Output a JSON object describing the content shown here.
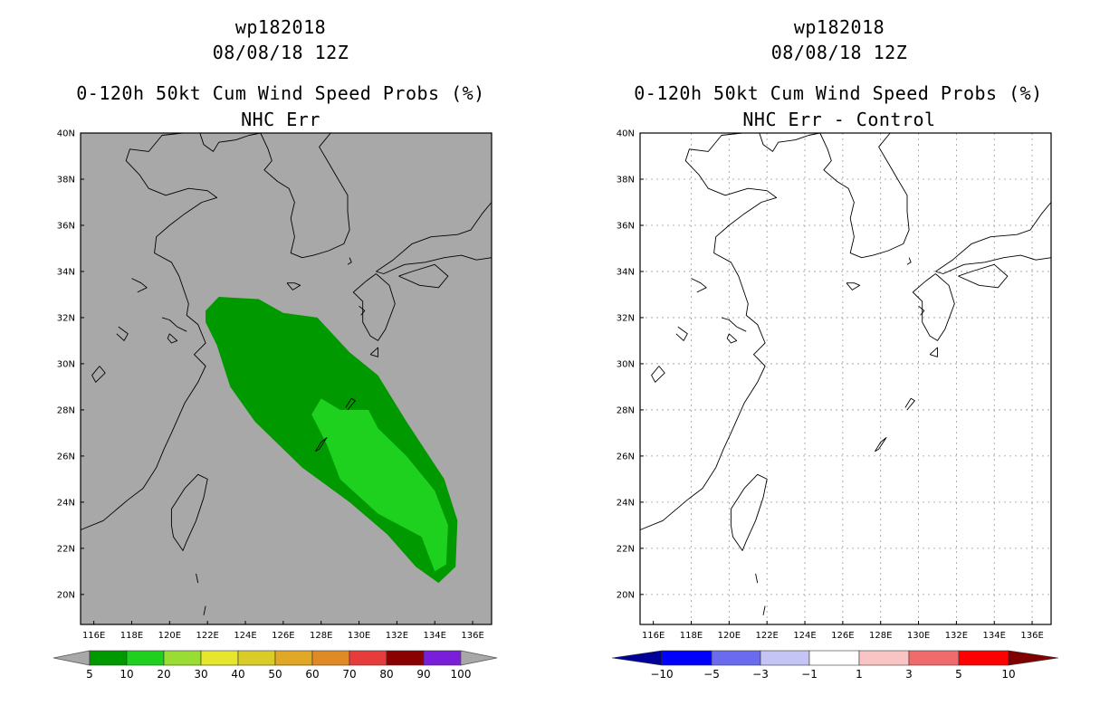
{
  "chart_data": [
    {
      "type": "map",
      "title": "wp182018",
      "subtitle": "08/08/18 12Z",
      "product": "0-120h 50kt Cum Wind Speed Probs (%)",
      "panel": "NHC Err",
      "lon_range": [
        115.3,
        137.0
      ],
      "lat_range": [
        18.7,
        40.0
      ],
      "x_ticks": [
        "116E",
        "118E",
        "120E",
        "122E",
        "124E",
        "126E",
        "128E",
        "130E",
        "132E",
        "134E",
        "136E"
      ],
      "y_ticks": [
        "20N",
        "22N",
        "24N",
        "26N",
        "28N",
        "30N",
        "32N",
        "34N",
        "36N",
        "38N",
        "40N"
      ],
      "background": "#a8a8a8",
      "colorbar": {
        "labels": [
          "5",
          "10",
          "20",
          "30",
          "40",
          "50",
          "60",
          "70",
          "80",
          "90",
          "100"
        ],
        "colors": [
          "#009900",
          "#1fd11f",
          "#99dd33",
          "#e6e62e",
          "#d9cc29",
          "#e0a824",
          "#e08a26",
          "#e63c3c",
          "#8b0000",
          "#7a1fd9"
        ]
      },
      "shaded_areas": [
        {
          "level": "5-10",
          "color": "#009900",
          "polygon": [
            [
              121.9,
              32.3
            ],
            [
              122.6,
              32.9
            ],
            [
              124.7,
              32.8
            ],
            [
              126.0,
              32.2
            ],
            [
              127.8,
              32.0
            ],
            [
              129.5,
              30.5
            ],
            [
              131.0,
              29.5
            ],
            [
              132.5,
              27.5
            ],
            [
              134.5,
              25.0
            ],
            [
              135.2,
              23.2
            ],
            [
              135.1,
              21.2
            ],
            [
              134.2,
              20.5
            ],
            [
              133.0,
              21.2
            ],
            [
              131.5,
              22.6
            ],
            [
              129.5,
              24.0
            ],
            [
              127.0,
              25.5
            ],
            [
              124.5,
              27.5
            ],
            [
              123.2,
              29.0
            ],
            [
              122.5,
              30.8
            ],
            [
              121.9,
              31.8
            ]
          ]
        },
        {
          "level": "10-20",
          "color": "#1fd11f",
          "polygon": [
            [
              128.0,
              28.5
            ],
            [
              129.0,
              28.0
            ],
            [
              130.5,
              28.0
            ],
            [
              131.0,
              27.2
            ],
            [
              132.5,
              26.0
            ],
            [
              134.0,
              24.5
            ],
            [
              134.7,
              23.0
            ],
            [
              134.6,
              21.3
            ],
            [
              134.0,
              21.0
            ],
            [
              133.3,
              22.5
            ],
            [
              131.0,
              23.5
            ],
            [
              129.0,
              25.0
            ],
            [
              128.3,
              26.5
            ],
            [
              127.5,
              27.8
            ]
          ]
        }
      ]
    },
    {
      "type": "map",
      "title": "wp182018",
      "subtitle": "08/08/18 12Z",
      "product": "0-120h 50kt Cum Wind Speed Probs (%)",
      "panel": "NHC Err - Control",
      "lon_range": [
        115.3,
        137.0
      ],
      "lat_range": [
        18.7,
        40.0
      ],
      "x_ticks": [
        "116E",
        "118E",
        "120E",
        "122E",
        "124E",
        "126E",
        "128E",
        "130E",
        "132E",
        "134E",
        "136E"
      ],
      "y_ticks": [
        "20N",
        "22N",
        "24N",
        "26N",
        "28N",
        "30N",
        "32N",
        "34N",
        "36N",
        "38N",
        "40N"
      ],
      "background": "#ffffff",
      "gridlines": true,
      "colorbar": {
        "labels": [
          "−10",
          "−5",
          "−3",
          "−1",
          "1",
          "3",
          "5",
          "10"
        ],
        "colors": [
          "#0000cc",
          "#0000ff",
          "#6b6bf0",
          "#c4c4f5",
          "#ffffff",
          "#f8c4c4",
          "#f06b6b",
          "#ff0000",
          "#cc0000"
        ],
        "end_colors": [
          "#000099",
          "#800000"
        ]
      }
    }
  ],
  "coastlines": [
    [
      [
        115.3,
        22.8
      ],
      [
        116.5,
        23.2
      ],
      [
        117.8,
        24.1
      ],
      [
        118.6,
        24.6
      ],
      [
        119.3,
        25.5
      ],
      [
        119.7,
        26.3
      ],
      [
        120.1,
        27.0
      ],
      [
        120.8,
        28.3
      ],
      [
        121.5,
        29.2
      ],
      [
        121.9,
        29.9
      ],
      [
        121.3,
        30.4
      ],
      [
        121.9,
        30.9
      ],
      [
        121.5,
        31.7
      ],
      [
        120.9,
        32.1
      ],
      [
        121.0,
        32.6
      ],
      [
        120.5,
        33.8
      ],
      [
        120.1,
        34.4
      ],
      [
        119.2,
        34.8
      ],
      [
        119.3,
        35.5
      ],
      [
        120.0,
        36.0
      ],
      [
        120.8,
        36.5
      ],
      [
        121.7,
        37.0
      ],
      [
        122.5,
        37.2
      ],
      [
        122.0,
        37.5
      ],
      [
        121.0,
        37.6
      ],
      [
        119.8,
        37.3
      ],
      [
        118.9,
        37.6
      ],
      [
        118.4,
        38.2
      ],
      [
        117.7,
        38.8
      ],
      [
        117.9,
        39.3
      ],
      [
        118.9,
        39.2
      ],
      [
        119.6,
        39.9
      ],
      [
        120.7,
        40.0
      ]
    ],
    [
      [
        121.6,
        40.0
      ],
      [
        121.8,
        39.5
      ],
      [
        122.3,
        39.2
      ],
      [
        122.6,
        39.6
      ],
      [
        123.5,
        39.7
      ],
      [
        124.2,
        39.9
      ],
      [
        124.8,
        40.0
      ]
    ],
    [
      [
        124.8,
        40.0
      ],
      [
        125.2,
        39.3
      ],
      [
        125.4,
        38.8
      ],
      [
        125.0,
        38.4
      ],
      [
        125.7,
        37.9
      ],
      [
        126.3,
        37.6
      ],
      [
        126.6,
        37.0
      ],
      [
        126.4,
        36.3
      ],
      [
        126.6,
        35.5
      ],
      [
        126.4,
        34.8
      ],
      [
        127.0,
        34.6
      ],
      [
        127.6,
        34.7
      ],
      [
        128.4,
        34.9
      ],
      [
        129.2,
        35.2
      ],
      [
        129.5,
        35.8
      ],
      [
        129.4,
        36.6
      ],
      [
        129.4,
        37.3
      ],
      [
        128.9,
        38.0
      ],
      [
        128.4,
        38.7
      ],
      [
        127.9,
        39.4
      ],
      [
        128.5,
        40.0
      ]
    ],
    [
      [
        130.9,
        34.0
      ],
      [
        131.8,
        34.5
      ],
      [
        132.8,
        35.2
      ],
      [
        133.8,
        35.5
      ],
      [
        135.2,
        35.6
      ],
      [
        135.9,
        35.8
      ],
      [
        136.5,
        36.5
      ],
      [
        137.0,
        37.0
      ]
    ],
    [
      [
        137.0,
        34.6
      ],
      [
        136.2,
        34.5
      ],
      [
        135.4,
        34.7
      ],
      [
        134.5,
        34.6
      ],
      [
        133.5,
        34.4
      ],
      [
        132.4,
        34.3
      ],
      [
        131.3,
        33.9
      ],
      [
        130.9,
        34.0
      ]
    ],
    [
      [
        130.9,
        33.9
      ],
      [
        131.6,
        33.4
      ],
      [
        131.9,
        32.6
      ],
      [
        131.4,
        31.5
      ],
      [
        131.0,
        31.0
      ],
      [
        130.6,
        31.2
      ],
      [
        130.2,
        31.8
      ],
      [
        130.2,
        32.7
      ],
      [
        129.7,
        33.1
      ],
      [
        130.4,
        33.6
      ],
      [
        130.9,
        33.9
      ]
    ],
    [
      [
        132.1,
        33.8
      ],
      [
        133.2,
        33.4
      ],
      [
        134.2,
        33.3
      ],
      [
        134.7,
        33.8
      ],
      [
        134.0,
        34.3
      ],
      [
        132.8,
        34.0
      ],
      [
        132.1,
        33.8
      ]
    ],
    [
      [
        120.1,
        23.0
      ],
      [
        120.1,
        23.7
      ],
      [
        120.8,
        24.6
      ],
      [
        121.5,
        25.2
      ],
      [
        122.0,
        25.0
      ],
      [
        121.8,
        24.2
      ],
      [
        121.4,
        23.2
      ],
      [
        120.9,
        22.3
      ],
      [
        120.7,
        21.9
      ],
      [
        120.2,
        22.5
      ],
      [
        120.1,
        23.0
      ]
    ],
    [
      [
        127.7,
        26.2
      ],
      [
        128.0,
        26.6
      ],
      [
        128.3,
        26.8
      ],
      [
        127.9,
        26.3
      ],
      [
        127.7,
        26.2
      ]
    ],
    [
      [
        129.3,
        28.1
      ],
      [
        129.6,
        28.5
      ],
      [
        129.8,
        28.4
      ],
      [
        129.4,
        28.0
      ]
    ],
    [
      [
        126.2,
        33.5
      ],
      [
        126.6,
        33.5
      ],
      [
        126.9,
        33.4
      ],
      [
        126.5,
        33.2
      ],
      [
        126.2,
        33.5
      ]
    ],
    [
      [
        119.6,
        32.0
      ],
      [
        120.0,
        31.9
      ],
      [
        120.4,
        31.6
      ],
      [
        120.9,
        31.4
      ]
    ],
    [
      [
        120.0,
        31.3
      ],
      [
        120.4,
        31.0
      ],
      [
        120.1,
        30.9
      ],
      [
        119.9,
        31.1
      ],
      [
        120.0,
        31.3
      ]
    ],
    [
      [
        116.3,
        29.9
      ],
      [
        116.6,
        29.6
      ],
      [
        116.1,
        29.2
      ],
      [
        115.9,
        29.5
      ],
      [
        116.3,
        29.9
      ]
    ],
    [
      [
        117.3,
        31.6
      ],
      [
        117.8,
        31.3
      ],
      [
        117.6,
        31.0
      ],
      [
        117.2,
        31.3
      ]
    ],
    [
      [
        118.0,
        33.7
      ],
      [
        118.5,
        33.5
      ],
      [
        118.8,
        33.3
      ],
      [
        118.3,
        33.1
      ]
    ],
    [
      [
        129.5,
        34.6
      ],
      [
        129.6,
        34.4
      ],
      [
        129.4,
        34.3
      ]
    ],
    [
      [
        130.0,
        32.5
      ],
      [
        130.3,
        32.3
      ],
      [
        130.1,
        32.1
      ]
    ],
    [
      [
        130.6,
        30.4
      ],
      [
        131.0,
        30.7
      ],
      [
        131.0,
        30.3
      ],
      [
        130.6,
        30.4
      ]
    ],
    [
      [
        121.4,
        20.9
      ],
      [
        121.5,
        20.5
      ]
    ],
    [
      [
        121.9,
        19.5
      ],
      [
        121.8,
        19.1
      ]
    ]
  ]
}
